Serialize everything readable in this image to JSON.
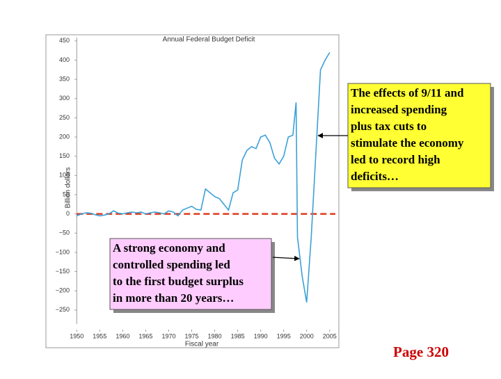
{
  "chart_data": {
    "type": "line",
    "title": "Annual Federal Budget Deficit",
    "ylabel": "Billion dollars",
    "xlabel": "Fiscal year",
    "x": [
      1950,
      1951,
      1952,
      1953,
      1954,
      1955,
      1956,
      1957,
      1958,
      1959,
      1960,
      1961,
      1962,
      1963,
      1964,
      1965,
      1966,
      1967,
      1968,
      1969,
      1970,
      1971,
      1972,
      1973,
      1974,
      1975,
      1976,
      1977,
      1978,
      1979,
      1980,
      1981,
      1982,
      1983,
      1984,
      1985,
      1986,
      1987,
      1988,
      1989,
      1990,
      1991,
      1992,
      1993,
      1994,
      1995,
      1996,
      1997,
      1997.7,
      1998,
      1998.5,
      1999,
      2000,
      2001,
      2002,
      2003,
      2004,
      2005
    ],
    "series": [
      {
        "name": "Deficit",
        "color": "#3aa0d8",
        "values": [
          -5,
          0,
          3,
          2,
          -2,
          -5,
          -3,
          0,
          8,
          2,
          0,
          3,
          5,
          3,
          5,
          0,
          3,
          5,
          3,
          0,
          8,
          5,
          -5,
          10,
          15,
          20,
          12,
          10,
          65,
          55,
          45,
          40,
          25,
          10,
          55,
          62,
          140,
          165,
          175,
          170,
          200,
          205,
          185,
          145,
          130,
          150,
          200,
          205,
          290,
          -60,
          -110,
          -160,
          -230,
          -60,
          160,
          375,
          400,
          420
        ]
      }
    ],
    "xlim": [
      1943.3,
      2007
    ],
    "ylim": [
      -348,
      466
    ],
    "xticks": [
      1950,
      1955,
      1960,
      1965,
      1970,
      1975,
      1980,
      1985,
      1990,
      1995,
      2000,
      2005
    ],
    "yticks": [
      450,
      400,
      350,
      300,
      250,
      200,
      150,
      100,
      50,
      0,
      {
        "value": -50,
        "label": "−50"
      },
      {
        "value": -100,
        "label": "−100"
      },
      {
        "value": -150,
        "label": "−150"
      },
      {
        "value": -200,
        "label": "−200"
      },
      {
        "value": -250,
        "label": "−250"
      }
    ],
    "reference_line": {
      "value": 0,
      "color": "#e03a1e"
    },
    "annotations": [
      {
        "lines": [
          "The effects of 9/11 and",
          "increased spending",
          "plus tax cuts to",
          "stimulate the economy",
          "led to record high",
          "deficits…"
        ],
        "color": "#ffff33"
      },
      {
        "lines": [
          "A strong economy and",
          "controlled spending led",
          "to the first budget surplus",
          "in more than 20 years…"
        ],
        "color": "#ffccff"
      }
    ]
  },
  "footer": "Page 320"
}
